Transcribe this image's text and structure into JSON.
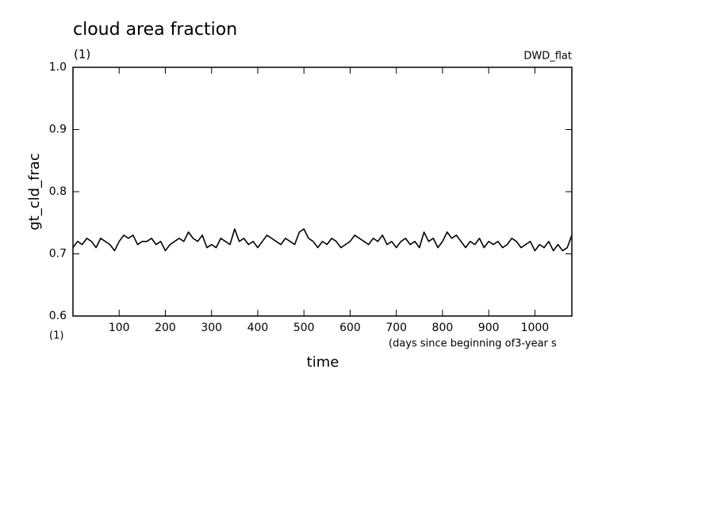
{
  "chart_data": {
    "type": "line",
    "title": "cloud area fraction",
    "subtitle": "(1)",
    "annotation": "DWD_flat",
    "y_label": "gt_cld_frac",
    "x_label": "time",
    "x_units": "(days since beginning of3-year s",
    "x_unit_left": "(1)",
    "xlim": [
      0,
      1080
    ],
    "xticks": [
      100,
      200,
      300,
      400,
      500,
      600,
      700,
      800,
      900,
      1000
    ],
    "ylim": [
      0.6,
      1.0
    ],
    "yticks": [
      0.6,
      0.7,
      0.8,
      0.9,
      {
        "value": 1,
        "label": "1.0"
      }
    ],
    "color": "#000000",
    "x": [
      0,
      10,
      20,
      30,
      40,
      50,
      60,
      70,
      80,
      90,
      100,
      110,
      120,
      130,
      140,
      150,
      160,
      170,
      180,
      190,
      200,
      210,
      220,
      230,
      240,
      250,
      260,
      270,
      280,
      290,
      300,
      310,
      320,
      330,
      340,
      350,
      360,
      370,
      380,
      390,
      400,
      410,
      420,
      430,
      440,
      450,
      460,
      470,
      480,
      490,
      500,
      510,
      520,
      530,
      540,
      550,
      560,
      570,
      580,
      590,
      600,
      610,
      620,
      630,
      640,
      650,
      660,
      670,
      680,
      690,
      700,
      710,
      720,
      730,
      740,
      750,
      760,
      770,
      780,
      790,
      800,
      810,
      820,
      830,
      840,
      850,
      860,
      870,
      880,
      890,
      900,
      910,
      920,
      930,
      940,
      950,
      960,
      970,
      980,
      990,
      1000,
      1010,
      1020,
      1030,
      1040,
      1050,
      1060,
      1070,
      1080
    ],
    "values": [
      0.71,
      0.72,
      0.715,
      0.725,
      0.72,
      0.71,
      0.725,
      0.72,
      0.715,
      0.705,
      0.72,
      0.73,
      0.725,
      0.73,
      0.715,
      0.72,
      0.72,
      0.725,
      0.715,
      0.72,
      0.705,
      0.715,
      0.72,
      0.725,
      0.72,
      0.735,
      0.725,
      0.72,
      0.73,
      0.71,
      0.715,
      0.71,
      0.725,
      0.72,
      0.715,
      0.74,
      0.72,
      0.725,
      0.715,
      0.72,
      0.71,
      0.72,
      0.73,
      0.725,
      0.72,
      0.715,
      0.725,
      0.72,
      0.715,
      0.735,
      0.74,
      0.725,
      0.72,
      0.71,
      0.72,
      0.715,
      0.725,
      0.72,
      0.71,
      0.715,
      0.72,
      0.73,
      0.725,
      0.72,
      0.715,
      0.725,
      0.72,
      0.73,
      0.715,
      0.72,
      0.71,
      0.72,
      0.725,
      0.715,
      0.72,
      0.71,
      0.735,
      0.72,
      0.725,
      0.71,
      0.72,
      0.735,
      0.725,
      0.73,
      0.72,
      0.71,
      0.72,
      0.715,
      0.725,
      0.71,
      0.72,
      0.715,
      0.72,
      0.71,
      0.715,
      0.725,
      0.72,
      0.71,
      0.715,
      0.72,
      0.705,
      0.715,
      0.71,
      0.72,
      0.705,
      0.715,
      0.705,
      0.71,
      0.73
    ]
  }
}
